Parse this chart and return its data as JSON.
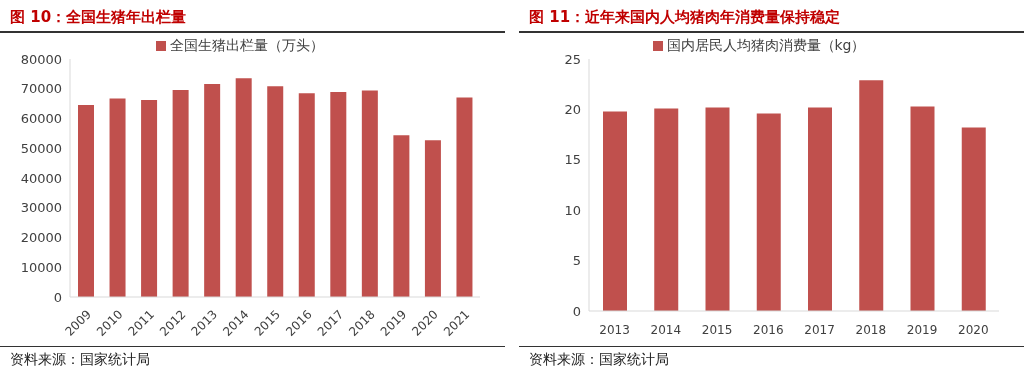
{
  "chart_data": [
    {
      "type": "bar",
      "title": "图 10：全国生猪年出栏量",
      "categories": [
        "2009",
        "2010",
        "2011",
        "2012",
        "2013",
        "2014",
        "2015",
        "2016",
        "2017",
        "2018",
        "2019",
        "2020",
        "2021"
      ],
      "series": [
        {
          "name": "全国生猪出栏量（万头）",
          "color": "#c0504d",
          "values": [
            64500,
            66700,
            66200,
            69600,
            71600,
            73500,
            70800,
            68500,
            68900,
            69400,
            54400,
            52700,
            67100
          ]
        }
      ],
      "ylim": [
        0,
        80000
      ],
      "yticks": [
        0,
        10000,
        20000,
        30000,
        40000,
        50000,
        60000,
        70000,
        80000
      ],
      "grid": false,
      "legend": "top",
      "annotations": [
        "资料来源：国家统计局"
      ]
    },
    {
      "type": "bar",
      "title": "图 11：近年来国内人均猪肉年消费量保持稳定",
      "categories": [
        "2013",
        "2014",
        "2015",
        "2016",
        "2017",
        "2018",
        "2019",
        "2020"
      ],
      "series": [
        {
          "name": "国内居民人均猪肉消费量（kg）",
          "color": "#c0504d",
          "values": [
            19.8,
            20.1,
            20.2,
            19.6,
            20.2,
            22.9,
            20.3,
            18.2
          ]
        }
      ],
      "ylim": [
        0,
        25
      ],
      "yticks": [
        0,
        5,
        10,
        15,
        20,
        25
      ],
      "grid": false,
      "legend": "top",
      "annotations": [
        "资料来源：国家统计局"
      ]
    }
  ]
}
